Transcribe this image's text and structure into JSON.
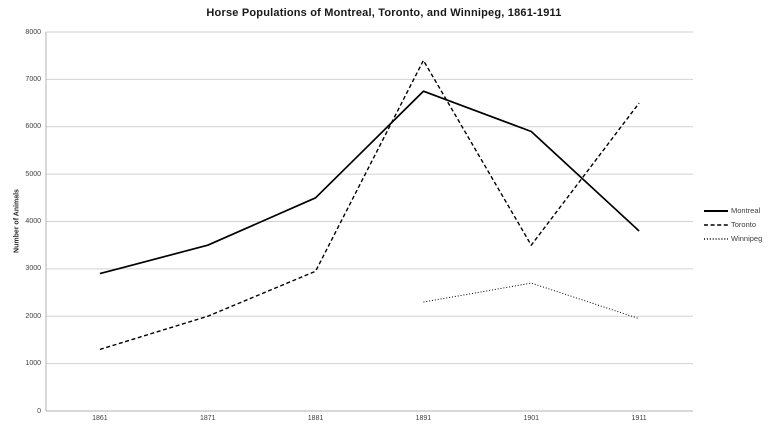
{
  "chart_data": {
    "type": "line",
    "title": "Horse Populations of Montreal, Toronto, and Winnipeg, 1861-1911",
    "xlabel": "",
    "ylabel": "Number of Animals",
    "categories": [
      "1861",
      "1871",
      "1881",
      "1891",
      "1901",
      "1911"
    ],
    "series": [
      {
        "name": "Montreal",
        "line_style": "solid",
        "color": "#000000",
        "values": [
          2900,
          3500,
          4500,
          6750,
          5900,
          3800
        ]
      },
      {
        "name": "Toronto",
        "line_style": "dashed",
        "color": "#000000",
        "values": [
          1300,
          2000,
          2950,
          7400,
          3500,
          6500
        ]
      },
      {
        "name": "Winnipeg",
        "line_style": "dotted",
        "color": "#000000",
        "values": [
          null,
          null,
          null,
          2300,
          2700,
          1950
        ]
      }
    ],
    "ylim": [
      0,
      8000
    ],
    "ytick_step": 1000,
    "grid": "horizontal",
    "legend_position": "right",
    "colors": {
      "gridline": "#d2d2d2",
      "axis": "#b3b3b3",
      "tick_text": "#3f3f3f",
      "title_text": "#191919",
      "series": "#000000"
    }
  }
}
